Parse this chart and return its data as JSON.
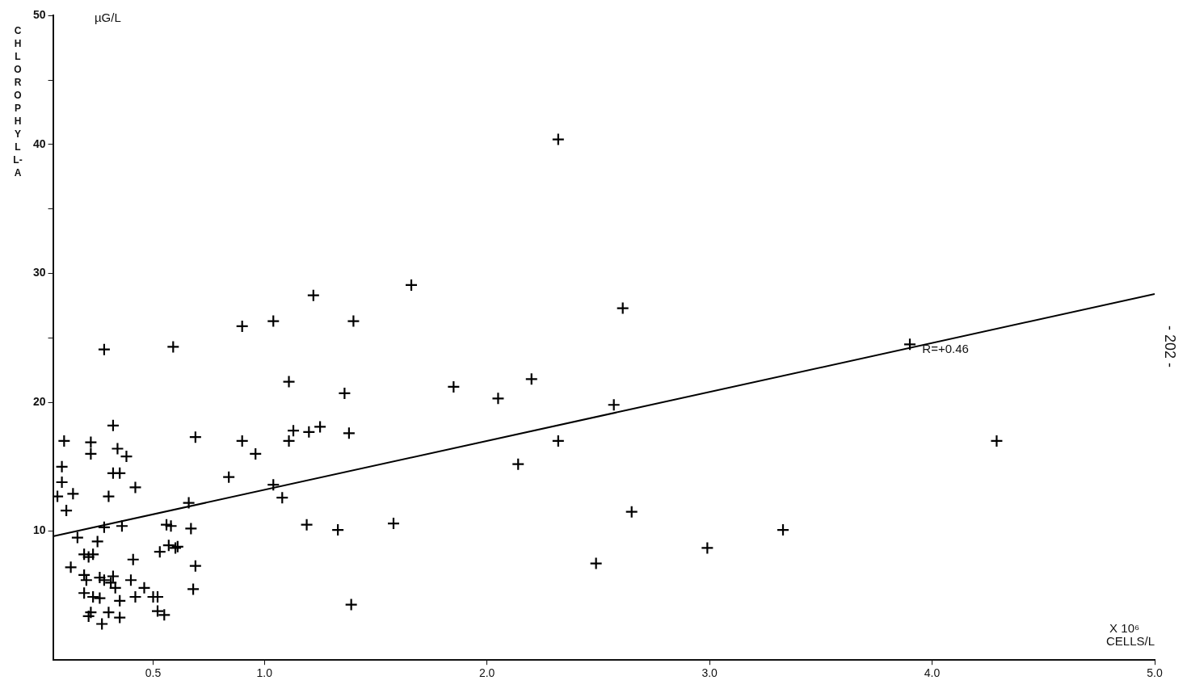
{
  "chart_data": {
    "type": "scatter",
    "ylabel": "CHLOROPHYLL-A",
    "xlabel": "CELLS/L",
    "annotations": [
      "µG/L",
      "X 10⁶",
      "R=+0.46",
      "- 202 -"
    ],
    "xlim": [
      0.05,
      5.0
    ],
    "xticks": [
      0.5,
      {
        "value": 1,
        "label": "1.0"
      },
      {
        "value": 2,
        "label": "2.0"
      },
      {
        "value": 3,
        "label": "3.0"
      },
      {
        "value": 4,
        "label": "4.0"
      },
      {
        "value": 5,
        "label": "5.0"
      }
    ],
    "ylim": [
      0,
      50
    ],
    "yticks": [
      10,
      20,
      30,
      40,
      50,
      {
        "value": 25,
        "label": null
      },
      {
        "value": 35,
        "label": null
      },
      {
        "value": 45,
        "label": null
      }
    ],
    "grid": false,
    "legend": false,
    "marker": "cross",
    "series": [
      {
        "color": "#000000",
        "x": [
          0.28,
          0.59,
          0.32,
          0.69,
          0.1,
          0.22,
          0.22,
          0.34,
          0.38,
          0.09,
          0.32,
          0.35,
          0.09,
          0.42,
          0.14,
          0.3,
          0.07,
          0.11,
          0.84,
          0.66,
          0.28,
          0.36,
          0.56,
          0.58,
          0.67,
          0.16,
          0.25,
          0.19,
          0.21,
          0.23,
          0.53,
          0.57,
          0.6,
          0.61,
          0.41,
          0.69,
          0.13,
          0.19,
          0.2,
          0.26,
          0.28,
          0.32,
          0.31,
          0.4,
          0.33,
          0.46,
          0.68,
          0.19,
          0.23,
          0.26,
          0.35,
          0.42,
          0.5,
          0.52,
          0.22,
          0.21,
          0.3,
          0.35,
          0.52,
          0.55,
          0.27,
          1.11,
          1.36,
          1.13,
          1.2,
          1.25,
          1.38,
          1.11,
          0.9,
          0.96,
          1.04,
          1.08,
          1.19,
          1.33,
          1.39,
          0.9,
          1.04,
          1.22,
          1.4,
          1.66,
          2.32,
          2.61,
          3.9,
          1.85,
          2.2,
          2.05,
          2.57,
          2.32,
          2.14,
          1.58,
          2.65,
          2.49,
          2.99,
          3.33,
          4.29
        ],
        "values": [
          24.1,
          24.3,
          18.2,
          17.3,
          17.0,
          16.9,
          16.0,
          16.4,
          15.8,
          15.0,
          14.5,
          14.5,
          13.8,
          13.4,
          12.9,
          12.7,
          12.7,
          11.6,
          14.2,
          12.2,
          10.3,
          10.4,
          10.5,
          10.4,
          10.2,
          9.5,
          9.2,
          8.2,
          8.0,
          8.2,
          8.4,
          8.9,
          8.7,
          8.8,
          7.8,
          7.3,
          7.2,
          6.6,
          6.2,
          6.4,
          6.2,
          6.5,
          6.0,
          6.2,
          5.6,
          5.6,
          5.5,
          5.2,
          4.9,
          4.8,
          4.6,
          4.9,
          4.9,
          4.9,
          3.7,
          3.4,
          3.7,
          3.3,
          3.8,
          3.5,
          2.8,
          21.6,
          20.7,
          17.8,
          17.7,
          18.1,
          17.6,
          17.0,
          17.0,
          16.0,
          13.6,
          12.6,
          10.5,
          10.1,
          4.3,
          25.9,
          26.3,
          28.3,
          26.3,
          29.1,
          40.4,
          27.3,
          24.5,
          21.2,
          21.8,
          20.3,
          19.8,
          17.0,
          15.2,
          10.6,
          11.5,
          7.5,
          8.7,
          10.1,
          17.0
        ]
      },
      {
        "type": "line",
        "color": "#000000",
        "marker": "none",
        "x": [
          0.05,
          5.0
        ],
        "values": [
          9.6,
          28.4
        ]
      }
    ]
  }
}
